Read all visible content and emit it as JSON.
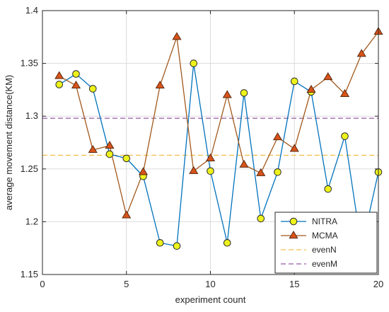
{
  "chart_data": {
    "type": "line",
    "title": "",
    "xlabel": "experiment count",
    "ylabel": "average movement distance(KM)",
    "xlim": [
      0,
      20
    ],
    "ylim": [
      1.15,
      1.4
    ],
    "xticks": [
      0,
      5,
      10,
      15,
      20
    ],
    "xtick_labels": [
      "0",
      "5",
      "10",
      "15",
      "20"
    ],
    "yticks": [
      1.15,
      1.2,
      1.25,
      1.3,
      1.35,
      1.4
    ],
    "ytick_labels": [
      "1.15",
      "1.2",
      "1.25",
      "1.3",
      "1.35",
      "1.4"
    ],
    "grid": true,
    "legend_position": "bottom-right",
    "x": [
      1,
      2,
      3,
      4,
      5,
      6,
      7,
      8,
      9,
      10,
      11,
      12,
      13,
      14,
      15,
      16,
      17,
      18,
      19,
      20
    ],
    "series": [
      {
        "name": "NITRA",
        "color": "#0072BD",
        "marker": "circle",
        "marker_color": "#EDF21B",
        "values": [
          1.33,
          1.34,
          1.326,
          1.264,
          1.26,
          1.243,
          1.18,
          1.177,
          1.35,
          1.248,
          1.18,
          1.322,
          1.203,
          1.247,
          1.333,
          1.323,
          1.231,
          1.281,
          1.175,
          1.247
        ]
      },
      {
        "name": "MCMA",
        "color": "#A2581C",
        "marker": "triangle",
        "marker_color": "#D95319",
        "values": [
          1.338,
          1.329,
          1.268,
          1.272,
          1.206,
          1.247,
          1.329,
          1.375,
          1.248,
          1.26,
          1.32,
          1.254,
          1.246,
          1.28,
          1.269,
          1.325,
          1.337,
          1.321,
          1.359,
          1.38
        ]
      },
      {
        "name": "evenN",
        "color": "#EDB120",
        "style": "dashed",
        "constant": 1.263
      },
      {
        "name": "evenM",
        "color": "#7E2F8E",
        "style": "dashed",
        "constant": 1.298
      }
    ]
  }
}
